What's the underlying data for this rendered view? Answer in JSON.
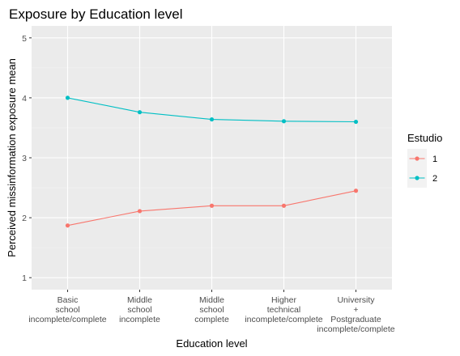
{
  "chart_data": {
    "type": "line",
    "title": "Exposure by Education level",
    "xlabel": "Education level",
    "ylabel": "Perceived missinformation exposure mean",
    "categories": [
      [
        "Basic",
        "school",
        "incomplete/complete"
      ],
      [
        "Middle",
        "school",
        "incomplete"
      ],
      [
        "Middle",
        "school",
        "complete"
      ],
      [
        "Higher",
        "technical",
        "incomplete/complete"
      ],
      [
        "University",
        "+",
        "Postgraduate",
        "incomplete/complete"
      ]
    ],
    "ylim": [
      0.8,
      5.2
    ],
    "yticks": [
      1,
      2,
      3,
      4,
      5
    ],
    "grid": true,
    "legend": {
      "title": "Estudio",
      "placement": "right"
    },
    "series": [
      {
        "name": "1",
        "color": "#F8766D",
        "values": [
          1.87,
          2.11,
          2.2,
          2.2,
          2.45
        ]
      },
      {
        "name": "2",
        "color": "#00BFC4",
        "values": [
          4.0,
          3.76,
          3.64,
          3.61,
          3.6
        ]
      }
    ]
  }
}
